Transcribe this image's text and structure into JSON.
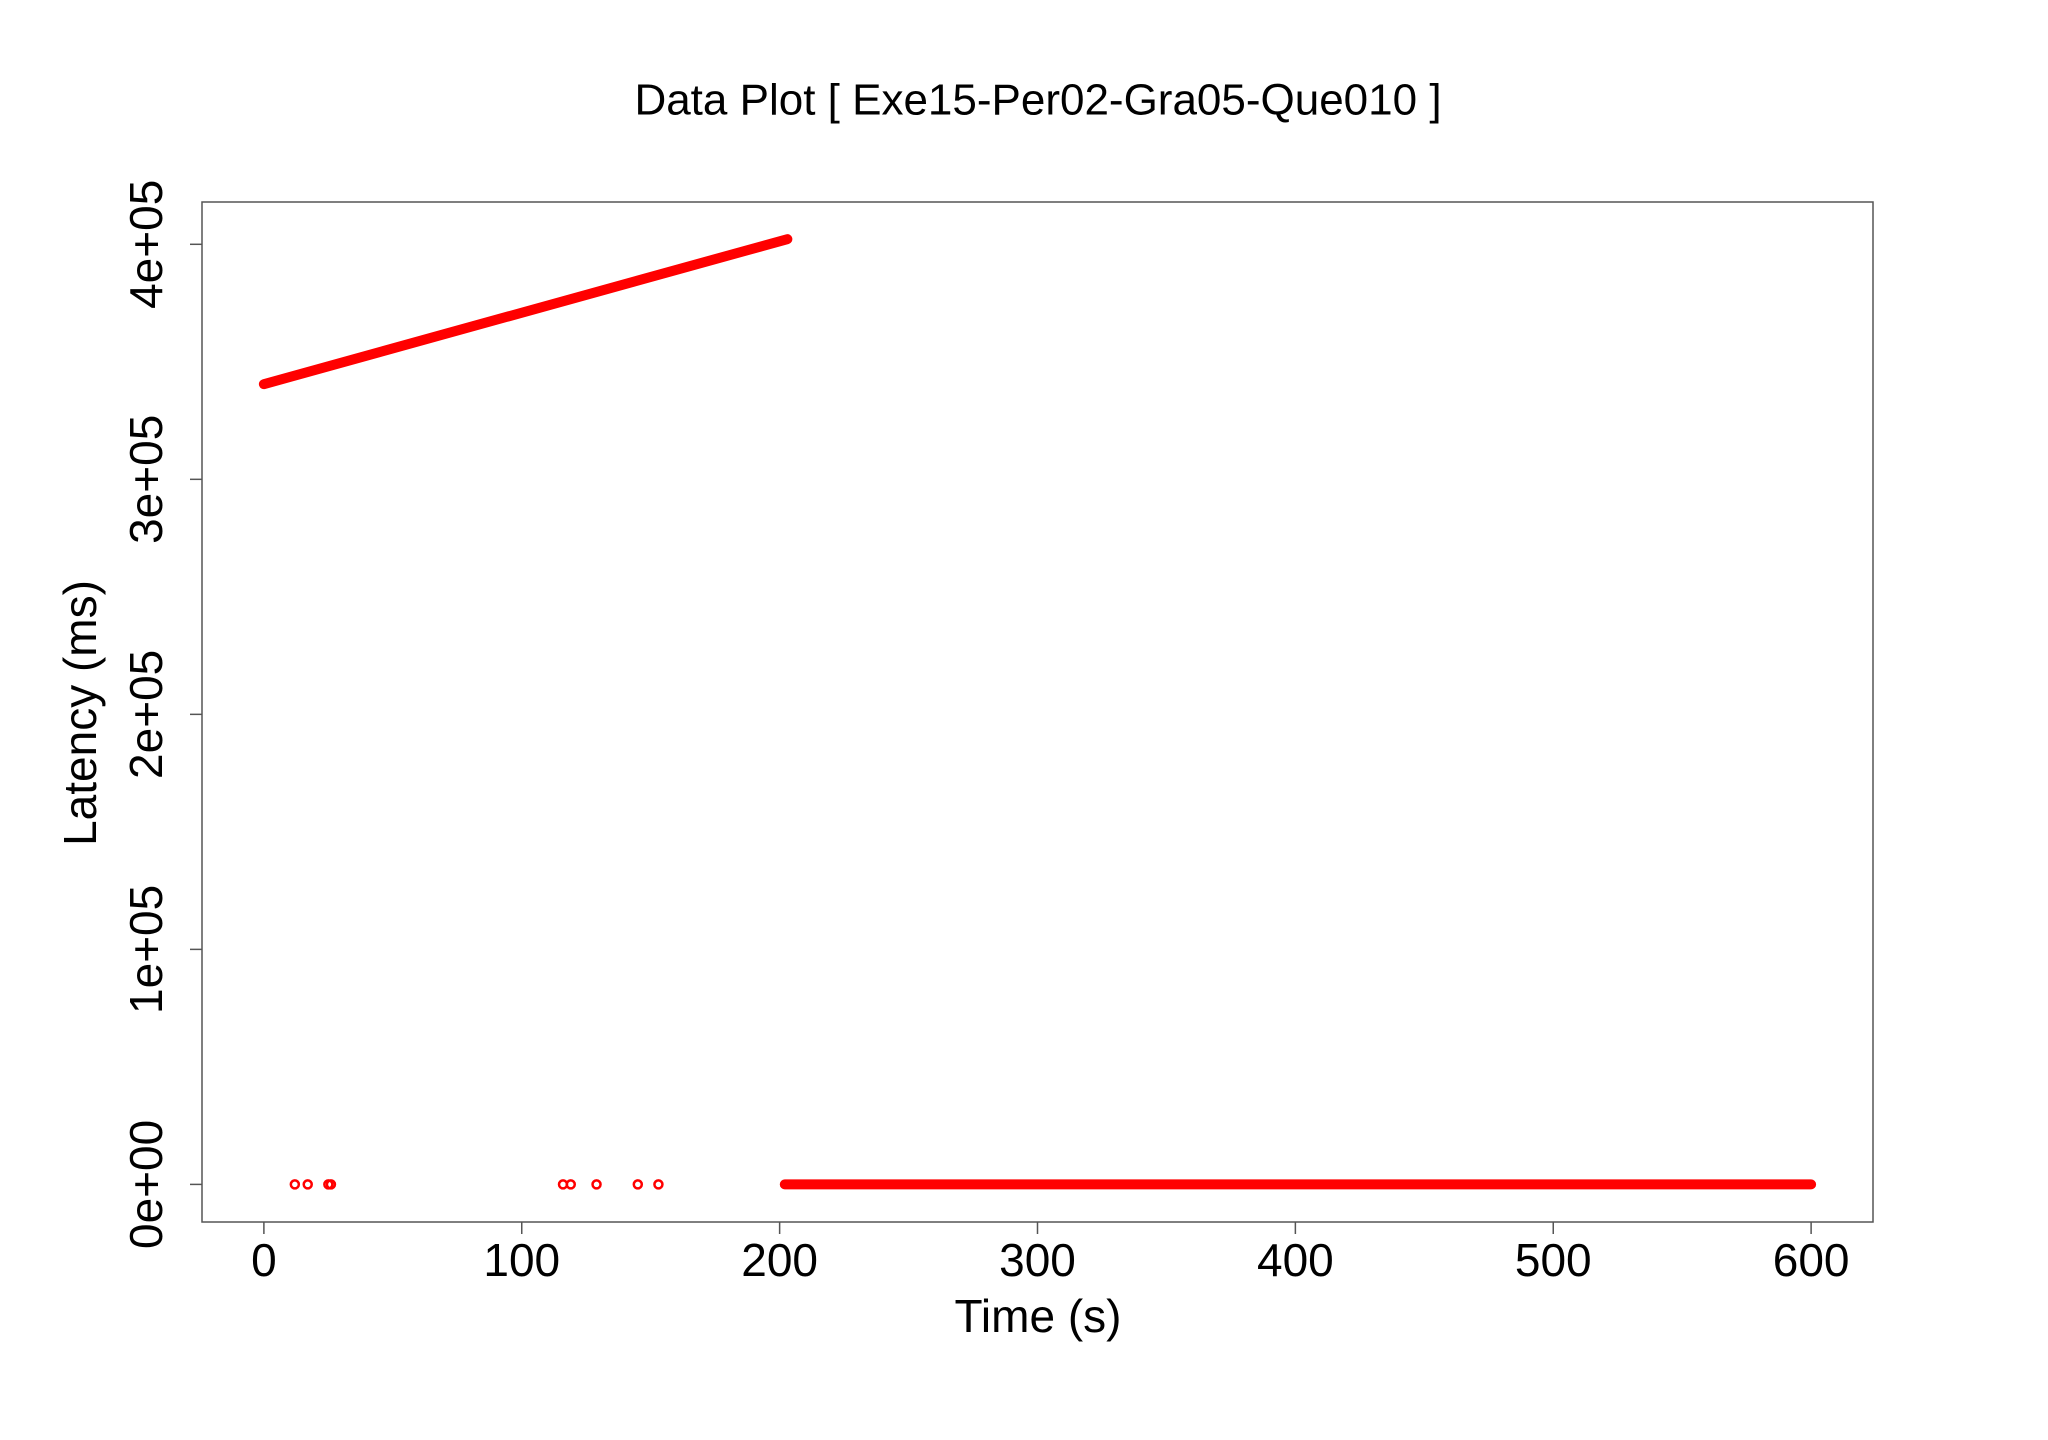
{
  "chart_data": {
    "type": "scatter",
    "title": "Data Plot [ Exe15-Per02-Gra05-Que010 ]",
    "x_label": "Time (s)",
    "y_label": "Latency (ms)",
    "xlim": [
      -24,
      624
    ],
    "ylim": [
      -16000,
      418000
    ],
    "xticks": [
      0,
      100,
      200,
      300,
      400,
      500,
      600
    ],
    "yticks": [
      {
        "value": 0,
        "label": "0e+00"
      },
      {
        "value": 100000,
        "label": "1e+05"
      },
      {
        "value": 200000,
        "label": "2e+05"
      },
      {
        "value": 300000,
        "label": "3e+05"
      },
      {
        "value": 400000,
        "label": "4e+05"
      }
    ],
    "series": [
      {
        "color": "#ff0000",
        "style": "line",
        "x": [
          0,
          203
        ],
        "values": [
          340500,
          402200
        ]
      },
      {
        "color": "#ff0000",
        "style": "line",
        "x": [
          202,
          600
        ],
        "values": [
          0,
          0
        ]
      },
      {
        "color": "#ff0000",
        "style": "points",
        "x": [
          12,
          17,
          25,
          26,
          116,
          119,
          129,
          145,
          153
        ],
        "values": [
          0,
          0,
          0,
          0,
          0,
          0,
          0,
          0,
          0
        ]
      }
    ]
  }
}
